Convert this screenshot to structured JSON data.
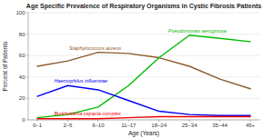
{
  "chart_data": {
    "type": "line",
    "title": "Age Specific Prevalence of Respiratory Organisms in Cystic Fibrosis Patients",
    "xlabel": "Age (Years)",
    "ylabel": "Percent of Patients",
    "categories": [
      "0–1",
      "2–5",
      "6–10",
      "11–17",
      "18–24",
      "25–34",
      "35–44",
      "45+"
    ],
    "series": [
      {
        "name": "Staphylococcus aureus",
        "color": "#8B5A2B",
        "values": [
          50,
          55,
          63,
          62,
          58,
          50,
          38,
          29
        ]
      },
      {
        "name": "Pseudomonas aeruginosa",
        "color": "#00BB00",
        "values": [
          2,
          5,
          12,
          32,
          58,
          79,
          76,
          73
        ]
      },
      {
        "name": "Haemophilus influenzae",
        "color": "#0000EE",
        "values": [
          22,
          32,
          28,
          18,
          8,
          5,
          4,
          4
        ]
      },
      {
        "name": "Burkholderia cepacia complex",
        "color": "#EE0000",
        "values": [
          1,
          1,
          1,
          2,
          3,
          3,
          3,
          3
        ]
      }
    ],
    "ylim": [
      0,
      100
    ],
    "yticks": [
      0,
      20,
      40,
      60,
      80,
      100
    ],
    "grid": true
  }
}
